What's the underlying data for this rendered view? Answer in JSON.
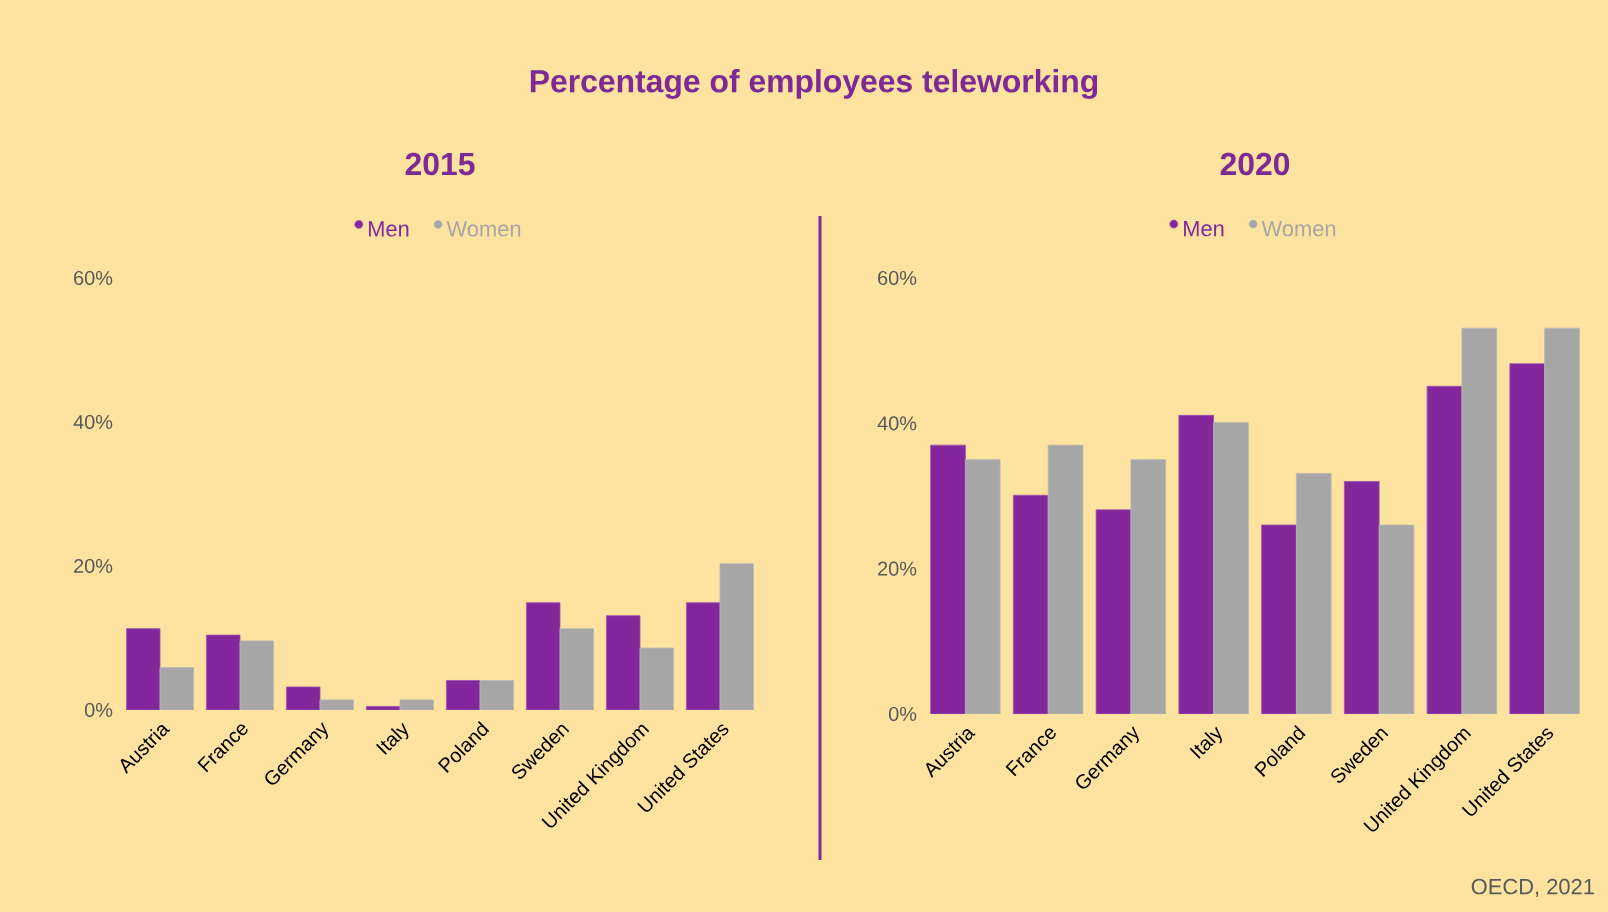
{
  "chart_data": [
    {
      "type": "bar",
      "title": "Percentage of employees teleworking",
      "subtitle": "2015",
      "categories": [
        "Austria",
        "France",
        "Germany",
        "Italy",
        "Poland",
        "Sweden",
        "United Kingdom",
        "United States"
      ],
      "series": [
        {
          "name": "Men",
          "color": "#84279c",
          "values": [
            11.3,
            10.4,
            3.2,
            0.5,
            4.1,
            14.9,
            13.1,
            14.9
          ]
        },
        {
          "name": "Women",
          "color": "#a6a6a6",
          "values": [
            5.9,
            9.6,
            1.4,
            1.4,
            4.1,
            11.3,
            8.6,
            20.3
          ]
        }
      ],
      "ylim": [
        0,
        60
      ],
      "yticks": [
        {
          "value": 0,
          "label": "0%"
        },
        {
          "value": 20,
          "label": "20%"
        },
        {
          "value": 40,
          "label": "40%"
        },
        {
          "value": 60,
          "label": "60%"
        }
      ],
      "legend": "top"
    },
    {
      "type": "bar",
      "subtitle": "2020",
      "categories": [
        "Austria",
        "France",
        "Germany",
        "Italy",
        "Poland",
        "Sweden",
        "United Kingdom",
        "United States"
      ],
      "series": [
        {
          "name": "Men",
          "color": "#84279c",
          "values": [
            37.0,
            30.1,
            28.1,
            41.1,
            26.0,
            32.0,
            45.1,
            48.2
          ]
        },
        {
          "name": "Women",
          "color": "#a6a6a6",
          "values": [
            35.0,
            37.0,
            35.0,
            40.1,
            33.1,
            26.0,
            53.1,
            53.1
          ]
        }
      ],
      "ylim": [
        0,
        60
      ],
      "yticks": [
        {
          "value": 0,
          "label": "0%"
        },
        {
          "value": 20,
          "label": "20%"
        },
        {
          "value": 40,
          "label": "40%"
        },
        {
          "value": 60,
          "label": "60%"
        }
      ],
      "legend": "top",
      "annotations": [
        "OECD, 2021"
      ]
    }
  ]
}
